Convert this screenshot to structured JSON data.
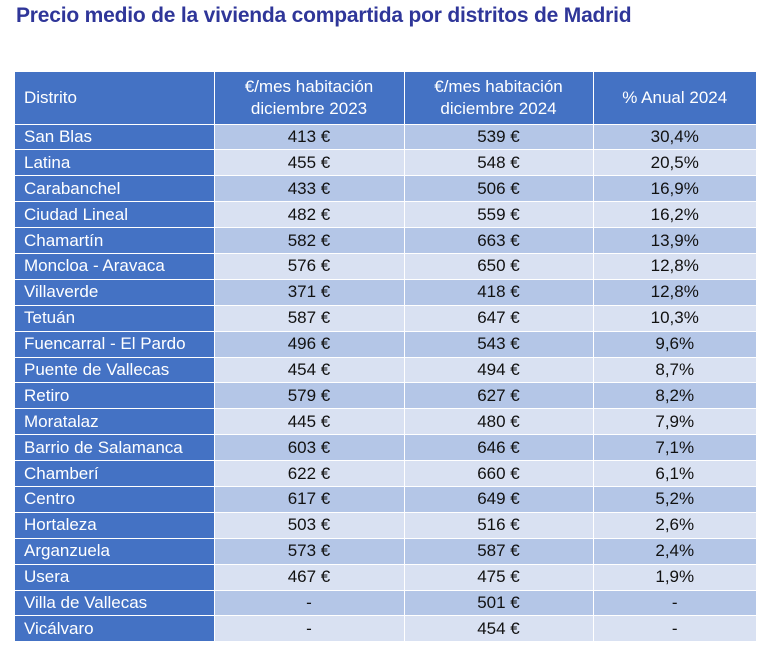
{
  "title": "Precio medio de la vivienda compartida por distritos de Madrid",
  "chart_data": {
    "type": "table",
    "title": "Precio medio de la vivienda compartida por distritos de Madrid",
    "columns": [
      {
        "label": "Distrito"
      },
      {
        "line1": "€/mes habitación",
        "line2": "diciembre 2023"
      },
      {
        "line1": "€/mes habitación",
        "line2": "diciembre 2024"
      },
      {
        "label": "% Anual 2024"
      }
    ],
    "rows": [
      {
        "district": "San Blas",
        "dec2023": "413 €",
        "dec2024": "539 €",
        "annual": "30,4%"
      },
      {
        "district": "Latina",
        "dec2023": "455 €",
        "dec2024": "548 €",
        "annual": "20,5%"
      },
      {
        "district": "Carabanchel",
        "dec2023": "433 €",
        "dec2024": "506 €",
        "annual": "16,9%"
      },
      {
        "district": "Ciudad Lineal",
        "dec2023": "482 €",
        "dec2024": "559 €",
        "annual": "16,2%"
      },
      {
        "district": "Chamartín",
        "dec2023": "582 €",
        "dec2024": "663 €",
        "annual": "13,9%"
      },
      {
        "district": "Moncloa - Aravaca",
        "dec2023": "576 €",
        "dec2024": "650 €",
        "annual": "12,8%"
      },
      {
        "district": "Villaverde",
        "dec2023": "371 €",
        "dec2024": "418 €",
        "annual": "12,8%"
      },
      {
        "district": "Tetuán",
        "dec2023": "587 €",
        "dec2024": "647 €",
        "annual": "10,3%"
      },
      {
        "district": "Fuencarral - El Pardo",
        "dec2023": "496 €",
        "dec2024": "543 €",
        "annual": "9,6%"
      },
      {
        "district": "Puente de Vallecas",
        "dec2023": "454 €",
        "dec2024": "494 €",
        "annual": "8,7%"
      },
      {
        "district": "Retiro",
        "dec2023": "579 €",
        "dec2024": "627 €",
        "annual": "8,2%"
      },
      {
        "district": "Moratalaz",
        "dec2023": "445 €",
        "dec2024": "480 €",
        "annual": "7,9%"
      },
      {
        "district": "Barrio de Salamanca",
        "dec2023": "603 €",
        "dec2024": "646 €",
        "annual": "7,1%"
      },
      {
        "district": "Chamberí",
        "dec2023": "622 €",
        "dec2024": "660 €",
        "annual": "6,1%"
      },
      {
        "district": "Centro",
        "dec2023": "617 €",
        "dec2024": "649 €",
        "annual": "5,2%"
      },
      {
        "district": "Hortaleza",
        "dec2023": "503 €",
        "dec2024": "516 €",
        "annual": "2,6%"
      },
      {
        "district": "Arganzuela",
        "dec2023": "573 €",
        "dec2024": "587 €",
        "annual": "2,4%"
      },
      {
        "district": "Usera",
        "dec2023": "467 €",
        "dec2024": "475 €",
        "annual": "1,9%"
      },
      {
        "district": "Villa de Vallecas",
        "dec2023": "-",
        "dec2024": "501 €",
        "annual": "-"
      },
      {
        "district": "Vicálvaro",
        "dec2023": "-",
        "dec2024": "454 €",
        "annual": "-"
      }
    ]
  },
  "colors": {
    "title": "#2f3699",
    "header_bg": "#4472c4",
    "row_band_dark": "#b4c6e7",
    "row_band_light": "#d9e1f2"
  }
}
